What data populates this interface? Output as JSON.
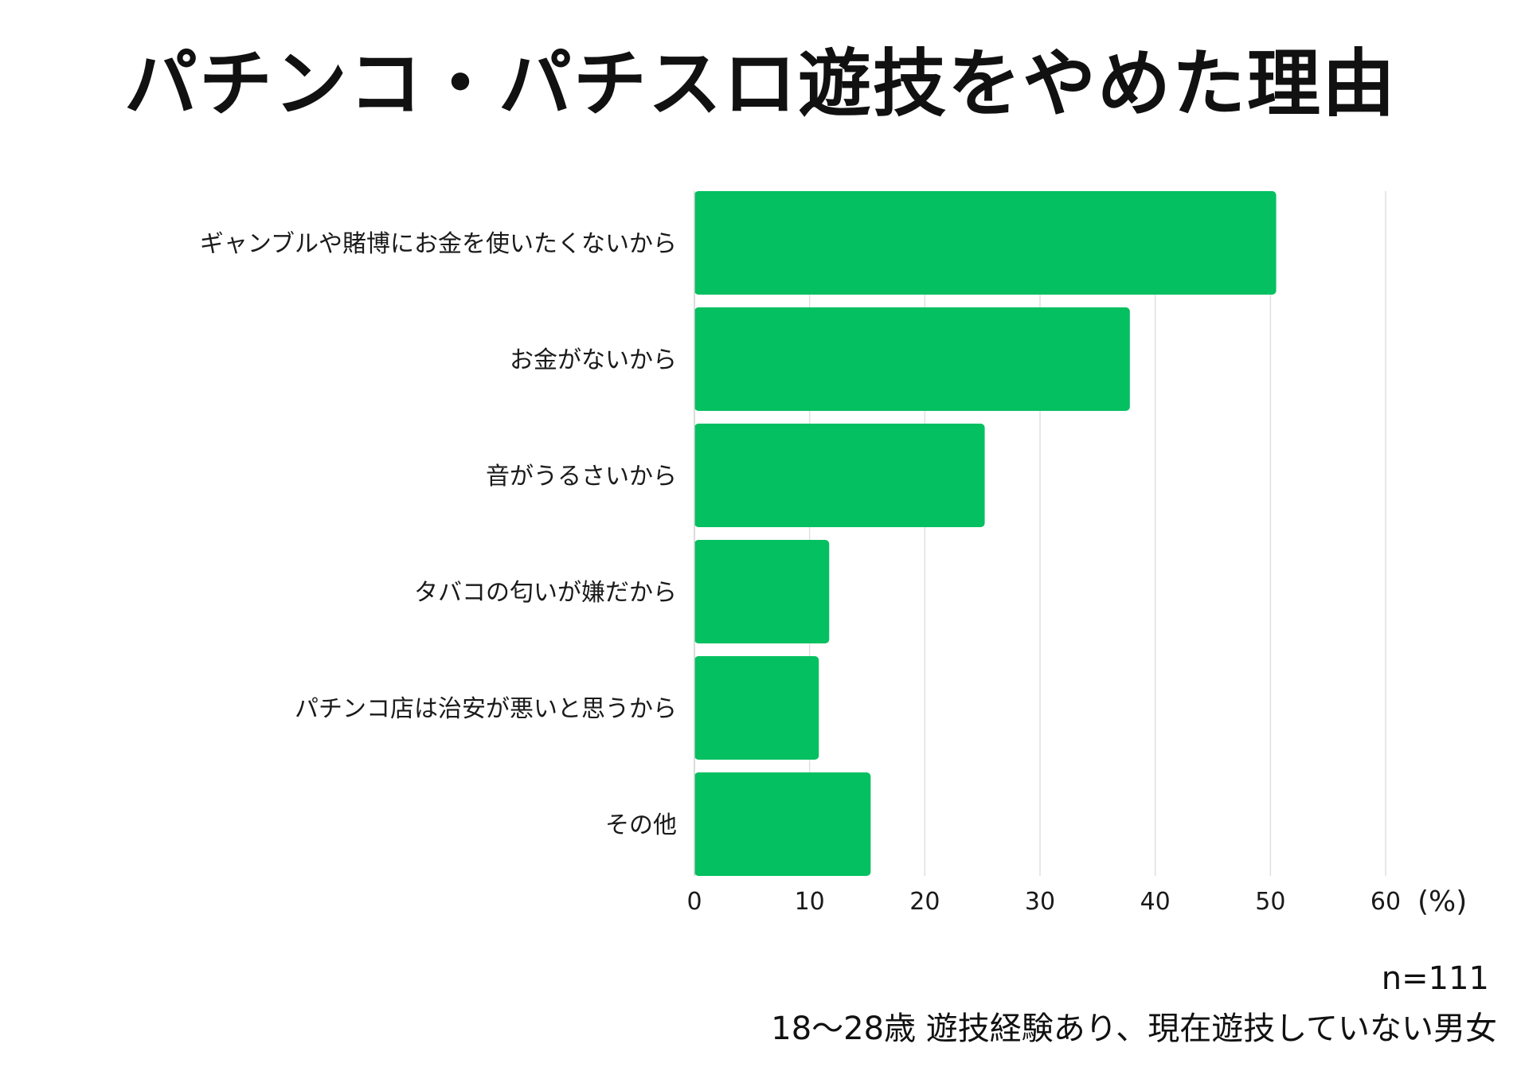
{
  "chart_data": {
    "type": "bar",
    "orientation": "horizontal",
    "title": "パチンコ・パチスロ遊技をやめた理由",
    "categories": [
      "ギャンブルや賭博にお金を使いたくないから",
      "お金がないから",
      "音がうるさいから",
      "タバコの匂いが嫌だから",
      "パチンコ店は治安が悪いと思うから",
      "その他"
    ],
    "values": [
      50.5,
      37.8,
      25.2,
      11.7,
      10.8,
      15.3
    ],
    "xlim": [
      0,
      60
    ],
    "xticks": [
      "0",
      "10",
      "20",
      "30",
      "40",
      "50",
      "60"
    ],
    "xunit": "(%)",
    "grid": true,
    "bar_color": "#04c060",
    "grid_color": "#e0e0e0"
  },
  "notes": {
    "sample_size": "n=111",
    "population": "18〜28歳 遊技経験あり、現在遊技していない男女"
  }
}
